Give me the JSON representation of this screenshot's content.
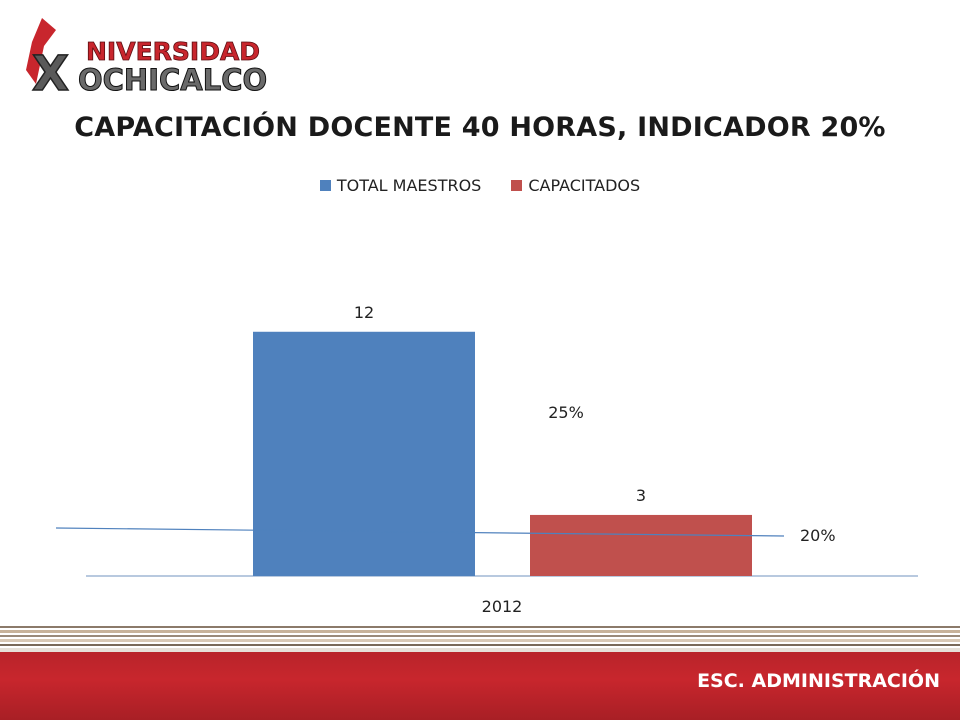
{
  "logo": {
    "line1": "NIVERSIDAD",
    "line2": "OCHICALCO",
    "mark": "X"
  },
  "footer": {
    "label": "ESC. ADMINISTRACIÓN"
  },
  "colors": {
    "series1": "#4f81bd",
    "series2": "#c0504d",
    "indicator": "#4f81bd",
    "footer": "#c0272d"
  },
  "chart_data": {
    "type": "bar",
    "title": "CAPACITACIÓN DOCENTE 40 HORAS, INDICADOR 20%",
    "categories": [
      "2012"
    ],
    "series": [
      {
        "name": "TOTAL MAESTROS",
        "values": [
          12
        ],
        "labels": [
          "12"
        ]
      },
      {
        "name": "CAPACITADOS",
        "values": [
          3
        ],
        "labels": [
          "3"
        ]
      }
    ],
    "annotations": {
      "percent_capacitados": "25%",
      "indicator_label": "20%"
    },
    "indicator_value": 0.2,
    "legend_position": "top",
    "grid": false,
    "ylim": [
      0,
      17
    ]
  }
}
